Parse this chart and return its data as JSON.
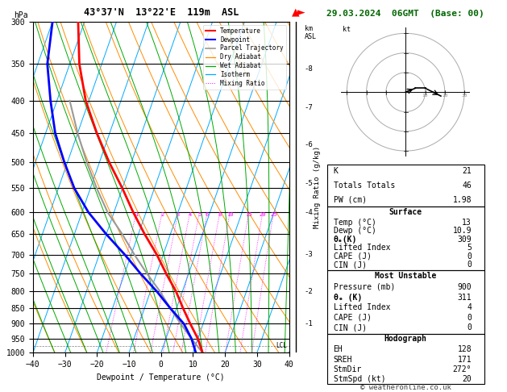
{
  "title_left": "43°37'N  13°22'E  119m  ASL",
  "title_right": "29.03.2024  06GMT  (Base: 00)",
  "xlabel": "Dewpoint / Temperature (°C)",
  "ylabel_left": "hPa",
  "ylabel_right": "Mixing Ratio (g/kg)",
  "pressure_levels": [
    300,
    350,
    400,
    450,
    500,
    550,
    600,
    650,
    700,
    750,
    800,
    850,
    900,
    950,
    1000
  ],
  "temp_color": "#ff0000",
  "dewp_color": "#0000ff",
  "parcel_color": "#999999",
  "dry_adiabat_color": "#ff8c00",
  "wet_adiabat_color": "#00aa00",
  "isotherm_color": "#00aaff",
  "mixing_ratio_color": "#ff00ff",
  "background": "#ffffff",
  "xlim": [
    -40,
    40
  ],
  "skew": 30,
  "temp_profile": {
    "pressure": [
      1000,
      950,
      900,
      850,
      800,
      750,
      700,
      650,
      600,
      550,
      500,
      450,
      400,
      350,
      300
    ],
    "temp": [
      13,
      10,
      6,
      2,
      -2,
      -7,
      -12,
      -18,
      -24,
      -30,
      -37,
      -44,
      -51,
      -57,
      -62
    ]
  },
  "dewp_profile": {
    "pressure": [
      1000,
      950,
      900,
      850,
      800,
      750,
      700,
      650,
      600,
      550,
      500,
      450,
      400,
      350,
      300
    ],
    "dewp": [
      10.9,
      8,
      4,
      -2,
      -8,
      -15,
      -22,
      -30,
      -38,
      -45,
      -51,
      -57,
      -62,
      -67,
      -70
    ]
  },
  "parcel_profile": {
    "pressure": [
      1000,
      950,
      900,
      850,
      800,
      750,
      700,
      650,
      600,
      550,
      500,
      450,
      400
    ],
    "temp": [
      13,
      8,
      3,
      -2,
      -7,
      -13,
      -19,
      -25,
      -32,
      -38,
      -44,
      -50,
      -56
    ]
  },
  "lcl_pressure": 975,
  "mixing_ratio_lines": [
    1,
    2,
    3,
    4,
    5,
    6,
    8,
    10,
    15,
    20,
    25
  ],
  "km_to_p": {
    "1": 900,
    "2": 800,
    "3": 700,
    "4": 600,
    "5": 540,
    "6": 470,
    "7": 410,
    "8": 356
  },
  "stats": {
    "K": 21,
    "Totals_Totals": 46,
    "PW_cm": 1.98,
    "Surface_Temp": 13,
    "Surface_Dewp": 10.9,
    "Surface_theta_e": 309,
    "Surface_LI": 5,
    "Surface_CAPE": 0,
    "Surface_CIN": 0,
    "MU_Pressure": 900,
    "MU_theta_e": 311,
    "MU_LI": 4,
    "MU_CAPE": 0,
    "MU_CIN": 0,
    "EH": 128,
    "SREH": 171,
    "StmDir": 272,
    "StmSpd": 20
  },
  "font_family": "monospace",
  "hodo_circles": [
    10,
    20,
    30
  ],
  "hodo_u": [
    0,
    5,
    10,
    14,
    18
  ],
  "hodo_v": [
    0,
    2,
    2,
    0,
    -2
  ]
}
